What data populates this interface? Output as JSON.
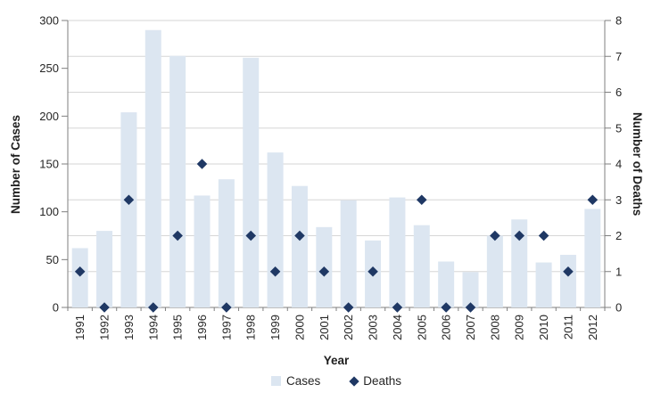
{
  "chart_data": {
    "type": "combo",
    "title": "",
    "categories": [
      "1991",
      "1992",
      "1993",
      "1994",
      "1995",
      "1996",
      "1997",
      "1998",
      "1999",
      "2000",
      "2001",
      "2002",
      "2003",
      "2004",
      "2005",
      "2006",
      "2007",
      "2008",
      "2009",
      "2010",
      "2011",
      "2012"
    ],
    "series": [
      {
        "name": "Cases",
        "type": "bar",
        "axis": "left",
        "color": "#dce6f1",
        "values": [
          62,
          80,
          204,
          290,
          263,
          117,
          134,
          261,
          162,
          127,
          84,
          112,
          70,
          115,
          86,
          48,
          37,
          75,
          92,
          47,
          55,
          103
        ]
      },
      {
        "name": "Deaths",
        "type": "scatter",
        "marker": "diamond",
        "axis": "right",
        "color": "#1f3864",
        "values": [
          1,
          0,
          3,
          0,
          2,
          4,
          0,
          2,
          1,
          2,
          1,
          0,
          1,
          0,
          3,
          0,
          0,
          2,
          2,
          2,
          1,
          3
        ]
      }
    ],
    "xlabel": "Year",
    "ylabel_left": "Number of Cases",
    "ylabel_right": "Number of Deaths",
    "ylim_left": [
      0,
      300
    ],
    "ylim_right": [
      0,
      8
    ],
    "yticks_left": [
      0,
      50,
      100,
      150,
      200,
      250,
      300
    ],
    "yticks_right": [
      0,
      1,
      2,
      3,
      4,
      5,
      6,
      7,
      8
    ],
    "grid": "horizontal gridlines aligned to right-axis integers",
    "legend_position": "bottom-center",
    "colors": {
      "bar": "#dce6f1",
      "marker": "#1f3864",
      "gridline": "#d6d6d6",
      "axis": "#7f7f7f",
      "text": "#262626"
    }
  }
}
